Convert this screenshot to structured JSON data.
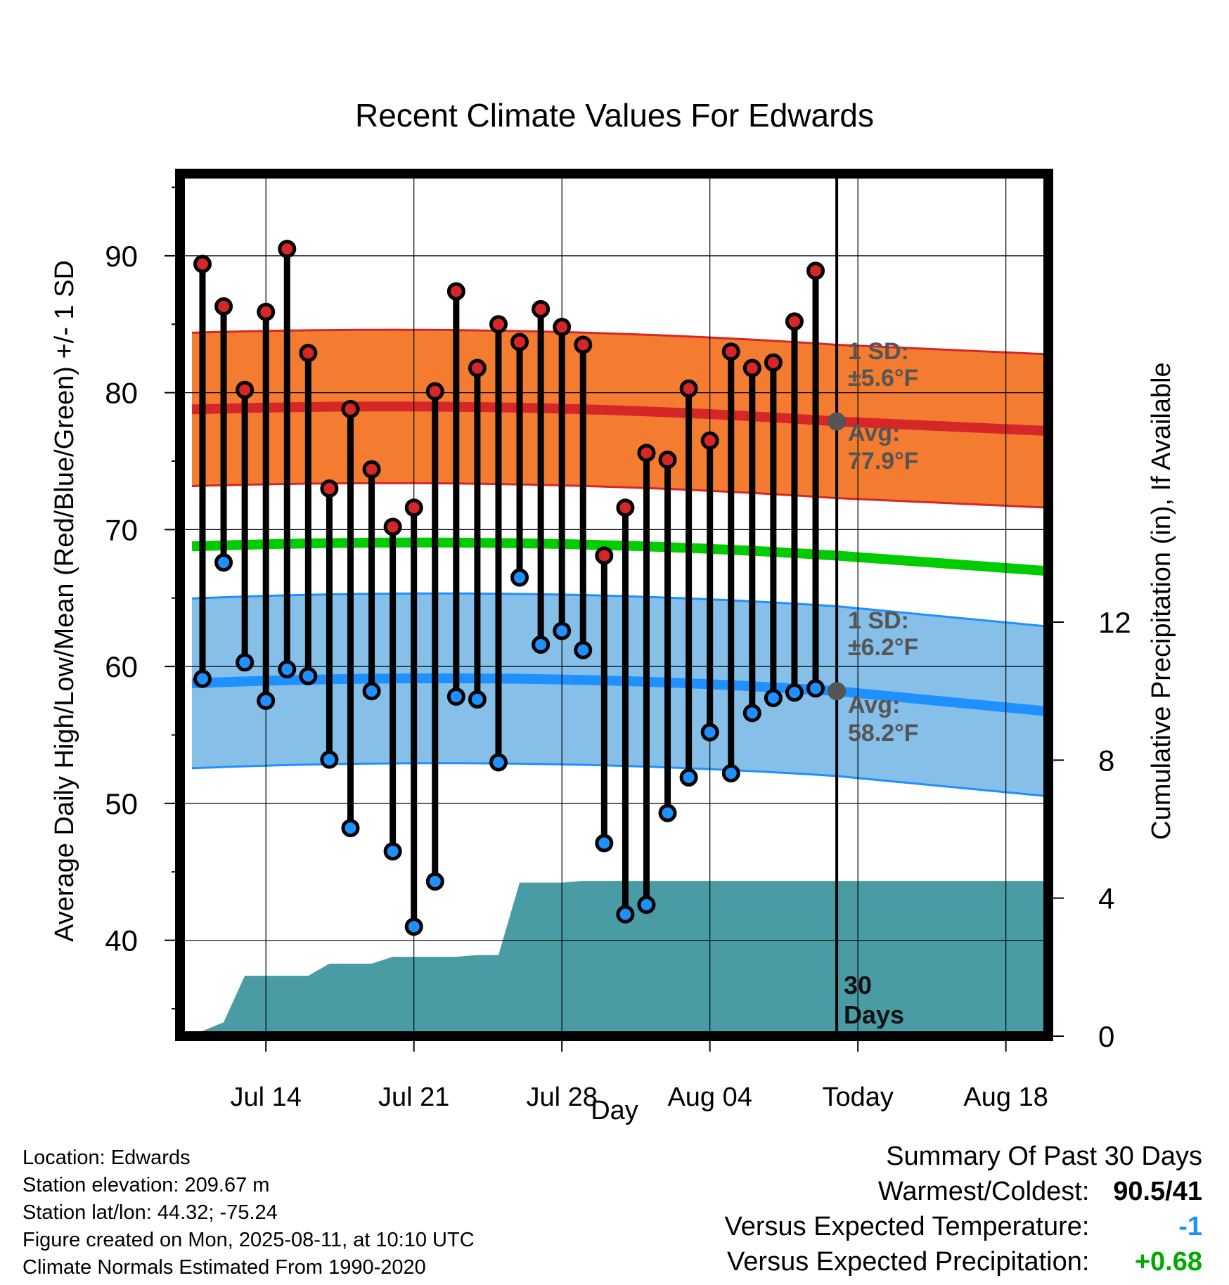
{
  "chart_data": {
    "type": "line",
    "title": "Recent Climate Values For Edwards",
    "xlabel": "Day",
    "ylabel": "Average Daily High/Low/Mean (Red/Blue/Green) +/- 1 SD",
    "ylabel_right": "Cumulative Precipitation (in), If Available",
    "x_ticks": [
      "Jul 14",
      "Jul 21",
      "Jul 28",
      "Aug 04",
      "Today",
      "Aug 18"
    ],
    "y_ticks_left": [
      40,
      50,
      60,
      70,
      80,
      90
    ],
    "y_ticks_right": [
      0,
      4,
      8,
      12
    ],
    "ylim_left": [
      33,
      96
    ],
    "ylim_right": [
      0,
      25
    ],
    "today_label": "30 Days",
    "daily_high": [
      89.4,
      86.3,
      80.2,
      85.9,
      90.5,
      82.9,
      73.0,
      78.8,
      74.4,
      70.2,
      71.6,
      80.1,
      87.4,
      81.8,
      85.0,
      83.7,
      86.1,
      84.8,
      83.5,
      68.1,
      71.6,
      75.6,
      75.1,
      80.3,
      76.5,
      83.0,
      81.8,
      82.2,
      85.2,
      88.9
    ],
    "daily_low": [
      59.1,
      67.6,
      60.3,
      57.5,
      59.8,
      59.3,
      53.2,
      48.2,
      58.2,
      46.5,
      41.0,
      44.3,
      57.8,
      57.6,
      53.0,
      66.5,
      61.6,
      62.6,
      61.2,
      47.1,
      41.9,
      42.6,
      49.3,
      51.9,
      55.2,
      52.2,
      56.6,
      57.7,
      58.1,
      58.4
    ],
    "normal_high": {
      "name": "Avg: 77.9°F",
      "start": 78.8,
      "mid": 78.9,
      "today": 77.9,
      "end": 77.1
    },
    "normal_high_sd": {
      "name": "1 SD: ±5.6°F",
      "value": 5.6
    },
    "normal_low": {
      "name": "Avg: 58.2°F",
      "start": 58.8,
      "mid": 59.1,
      "today": 58.2,
      "end": 56.5
    },
    "normal_low_sd": {
      "name": "1 SD: ±6.2°F",
      "value": 6.2
    },
    "normal_mean": {
      "start": 68.8,
      "mid": 69.0,
      "today": 68.1,
      "end": 66.8
    },
    "cumulative_precip": [
      0.15,
      0.4,
      1.75,
      1.75,
      1.75,
      1.75,
      2.1,
      2.1,
      2.1,
      2.3,
      2.3,
      2.3,
      2.3,
      2.35,
      2.35,
      4.45,
      4.45,
      4.45,
      4.5,
      4.5,
      4.5,
      4.5,
      4.5,
      4.5,
      4.5,
      4.5,
      4.5,
      4.5,
      4.5,
      4.5
    ],
    "colors": {
      "high": "#d62728",
      "low": "#1e90ff",
      "mean": "#00cc00",
      "high_band": "#f47c30",
      "low_band": "#86c0e8",
      "precip": "#4a9ca4"
    }
  },
  "labels": {
    "high_sd_line1": "1 SD:",
    "high_sd_line2": "±5.6°F",
    "high_avg_line1": "Avg:",
    "high_avg_line2": "77.9°F",
    "low_sd_line1": "1 SD:",
    "low_sd_line2": "±6.2°F",
    "low_avg_line1": "Avg:",
    "low_avg_line2": "58.2°F",
    "today_line1": "30",
    "today_line2": "Days"
  },
  "info": {
    "location": "Location: Edwards",
    "elevation": "Station elevation: 209.67 m",
    "latlon": "Station lat/lon: 44.32; -75.24",
    "created": "Figure created on Mon, 2025-08-11, at 10:10 UTC",
    "normals": "Climate Normals Estimated From 1990-2020"
  },
  "summary": {
    "title": "Summary Of Past 30 Days",
    "warmest_label": "Warmest/Coldest:",
    "warmest_value": "90.5/41",
    "temp_label": "Versus Expected Temperature:",
    "temp_value": "-1",
    "temp_color": "#1e90ff",
    "precip_label": "Versus Expected Precipitation:",
    "precip_value": "+0.68",
    "precip_color": "#00aa00"
  }
}
